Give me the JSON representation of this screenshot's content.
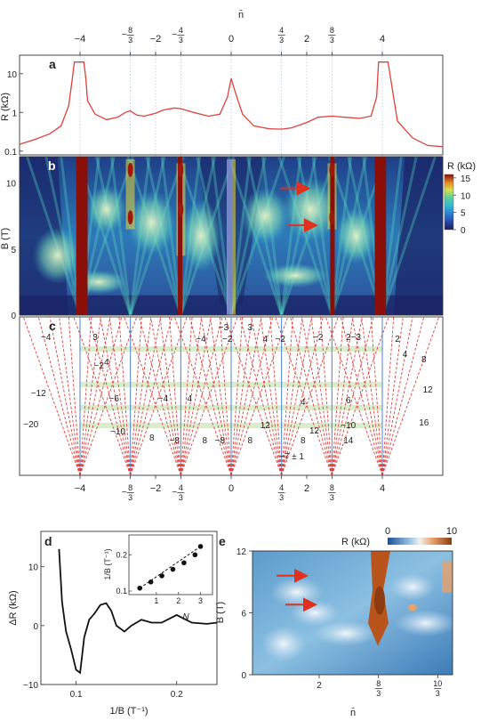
{
  "panels": {
    "a": "a",
    "b": "b",
    "c": "c",
    "d": "d",
    "e": "e"
  },
  "chart_data": [
    {
      "panel": "a",
      "type": "line",
      "xlabel": "n̄",
      "ylabel": "R (kΩ)",
      "yscale": "log",
      "xlim": [
        -5.6,
        5.6
      ],
      "ylim": [
        0.08,
        30
      ],
      "top_ticks": [
        {
          "x": -4,
          "label": "−4"
        },
        {
          "x": -2.667,
          "num": "8",
          "den": "3",
          "neg": true
        },
        {
          "x": -2,
          "label": "−2"
        },
        {
          "x": -1.333,
          "num": "4",
          "den": "3",
          "neg": true
        },
        {
          "x": 0,
          "label": "0"
        },
        {
          "x": 1.333,
          "num": "4",
          "den": "3",
          "neg": false
        },
        {
          "x": 2,
          "label": "2"
        },
        {
          "x": 2.667,
          "num": "8",
          "den": "3",
          "neg": false
        },
        {
          "x": 4,
          "label": "4"
        }
      ],
      "yticks": [
        {
          "v": 10,
          "label": "10"
        },
        {
          "v": 1,
          "label": "1"
        },
        {
          "v": 0.1,
          "label": "0.1"
        }
      ],
      "series": [
        {
          "color": "#e0403a",
          "x": [
            -5.6,
            -5.2,
            -4.8,
            -4.5,
            -4.3,
            -4.2,
            -4.15,
            -4.1,
            -3.9,
            -3.85,
            -3.8,
            -3.6,
            -3.3,
            -3.0,
            -2.8,
            -2.67,
            -2.5,
            -2.3,
            -2.0,
            -1.8,
            -1.5,
            -1.33,
            -1.0,
            -0.6,
            -0.3,
            -0.1,
            0.0,
            0.1,
            0.3,
            0.6,
            1.0,
            1.33,
            1.6,
            2.0,
            2.3,
            2.67,
            3.0,
            3.4,
            3.7,
            3.85,
            3.9,
            4.1,
            4.15,
            4.2,
            4.4,
            4.8,
            5.2,
            5.6
          ],
          "y": [
            0.15,
            0.2,
            0.28,
            0.45,
            1.5,
            8,
            20,
            20,
            20,
            8,
            2,
            0.9,
            0.65,
            0.75,
            1.0,
            1.1,
            0.85,
            0.8,
            0.95,
            1.15,
            1.3,
            1.25,
            1.0,
            0.8,
            0.9,
            2.5,
            7.5,
            3.5,
            0.9,
            0.45,
            0.38,
            0.37,
            0.4,
            0.55,
            0.75,
            0.8,
            0.75,
            0.7,
            0.8,
            2.5,
            20,
            20,
            20,
            10,
            0.6,
            0.22,
            0.14,
            0.13
          ]
        }
      ]
    },
    {
      "panel": "b",
      "type": "heatmap",
      "xlim": [
        -5.6,
        5.6
      ],
      "ylabel": "B (T)",
      "ylim": [
        0,
        12
      ],
      "yticks": [
        {
          "v": 0,
          "label": "0"
        },
        {
          "v": 5,
          "label": "5"
        },
        {
          "v": 10,
          "label": "10"
        }
      ],
      "colorbar": {
        "label": "R (kΩ)",
        "range": [
          0,
          16
        ],
        "ticks": [
          {
            "v": 15,
            "label": "15"
          },
          {
            "v": 10,
            "label": "10"
          },
          {
            "v": 5,
            "label": "5"
          },
          {
            "v": 0,
            "label": "0"
          }
        ]
      },
      "arrows": [
        {
          "x": 1.4,
          "y": 9.6
        },
        {
          "x": 1.6,
          "y": 6.8
        }
      ],
      "red_columns": [
        {
          "x": -3.95,
          "width": 0.3
        },
        {
          "x": 3.95,
          "width": 0.3
        },
        {
          "x": -1.35,
          "width": 0.12
        },
        {
          "x": 2.68,
          "width": 0.12
        }
      ],
      "bright_features": [
        {
          "x": -2.67,
          "y": [
            6.5,
            11.8
          ]
        },
        {
          "x": -1.33,
          "y": [
            4.5,
            11.5
          ]
        },
        {
          "x": 0.0,
          "y": [
            0,
            11.8
          ]
        },
        {
          "x": 2.67,
          "y": [
            6.5,
            11.5
          ]
        }
      ]
    },
    {
      "panel": "c",
      "type": "diagram",
      "origins": [
        -4,
        -2.667,
        -1.333,
        0,
        1.333,
        2.667,
        4
      ],
      "bottom_ticks": [
        {
          "x": -4,
          "label": "−4"
        },
        {
          "x": -2.667,
          "num": "8",
          "den": "3",
          "neg": true
        },
        {
          "x": -2,
          "label": "−2"
        },
        {
          "x": -1.333,
          "num": "4",
          "den": "3",
          "neg": true
        },
        {
          "x": 0,
          "label": "0"
        },
        {
          "x": 1.333,
          "num": "4",
          "den": "3",
          "neg": false
        },
        {
          "x": 2,
          "label": "2"
        },
        {
          "x": 2.667,
          "num": "8",
          "den": "3",
          "neg": false
        },
        {
          "x": 4,
          "label": "4"
        }
      ],
      "fan_labels": [
        "−4",
        "−12",
        "−20",
        "3",
        "−2",
        "4",
        "−6",
        "−10",
        "8",
        "−4",
        "4",
        "−8",
        "8",
        "−3",
        "−4",
        "−2",
        "3",
        "−8",
        "8",
        "4",
        "−2",
        "12",
        "4",
        "8",
        "−2",
        "2",
        "−3",
        "12",
        "6",
        "−10",
        "14",
        "−7 ± 1",
        "2",
        "4",
        "8",
        "12",
        "16"
      ]
    },
    {
      "panel": "d",
      "type": "line",
      "xlabel": "1/B (T⁻¹)",
      "ylabel": "ΔR (kΩ)",
      "xlim": [
        0.065,
        0.24
      ],
      "ylim": [
        -10,
        16
      ],
      "xticks": [
        {
          "v": 0.1,
          "label": "0.1"
        },
        {
          "v": 0.2,
          "label": "0.2"
        }
      ],
      "yticks": [
        {
          "v": 10,
          "label": "10"
        },
        {
          "v": 0,
          "label": "0"
        },
        {
          "v": -10,
          "label": "−10"
        }
      ],
      "series": [
        {
          "color": "#111111",
          "x": [
            0.083,
            0.086,
            0.09,
            0.095,
            0.1,
            0.104,
            0.108,
            0.113,
            0.118,
            0.124,
            0.13,
            0.135,
            0.14,
            0.148,
            0.155,
            0.165,
            0.175,
            0.185,
            0.2,
            0.215,
            0.23,
            0.24
          ],
          "y": [
            13,
            4,
            -1,
            -4,
            -7.5,
            -8,
            -2,
            1,
            2,
            3.5,
            3.8,
            2.5,
            0,
            -1,
            0,
            1,
            0.5,
            0.5,
            1.8,
            0.5,
            0.3,
            0.5
          ]
        }
      ],
      "inset": {
        "type": "scatter",
        "xlabel": "N",
        "ylabel": "1/B (T⁻¹)",
        "xlim": [
          0,
          3.3
        ],
        "ylim": [
          0.1,
          0.24
        ],
        "xticks": [
          {
            "v": 1,
            "label": "1"
          },
          {
            "v": 2,
            "label": "2"
          },
          {
            "v": 3,
            "label": "3"
          }
        ],
        "yticks": [
          {
            "v": 0.1,
            "label": "0.1"
          },
          {
            "v": 0.2,
            "label": "0.2"
          }
        ],
        "x": [
          0.25,
          0.75,
          1.25,
          1.75,
          2.25,
          2.75,
          3.0
        ],
        "y": [
          0.108,
          0.125,
          0.142,
          0.16,
          0.178,
          0.2,
          0.223
        ]
      }
    },
    {
      "panel": "e",
      "type": "heatmap",
      "xlabel": "n̄",
      "ylabel": "B (T)",
      "xlim": [
        1.25,
        3.5
      ],
      "ylim": [
        0,
        12
      ],
      "xticks": [
        {
          "v": 2,
          "label": "2"
        },
        {
          "v": 2.667,
          "num": "8",
          "den": "3",
          "neg": false
        },
        {
          "v": 3.333,
          "num": "10",
          "den": "3",
          "neg": false
        }
      ],
      "yticks": [
        {
          "v": 0,
          "label": "0"
        },
        {
          "v": 6,
          "label": "6"
        },
        {
          "v": 12,
          "label": "12"
        }
      ],
      "colorbar": {
        "label": "R (kΩ)",
        "range": [
          0,
          10
        ],
        "ticks": [
          {
            "v": 0,
            "label": "0"
          },
          {
            "v": 10,
            "label": "10"
          }
        ]
      },
      "arrows": [
        {
          "x": 1.6,
          "y": 9.6
        },
        {
          "x": 1.7,
          "y": 6.8
        }
      ]
    }
  ]
}
